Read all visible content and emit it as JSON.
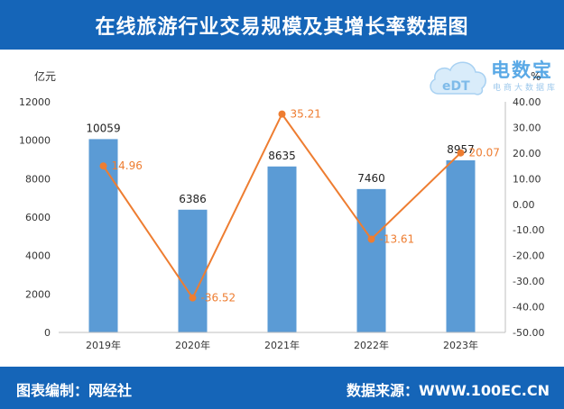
{
  "header": {
    "title": "在线旅游行业交易规模及其增长率数据图"
  },
  "footer": {
    "left": "图表编制：网经社",
    "right": "数据来源：WWW.100EC.CN"
  },
  "logo": {
    "brand": "电数宝",
    "slogan": "电商大数据库",
    "mark_text": "eDT"
  },
  "colors": {
    "bar": "#5b9bd5",
    "line": "#ee7d31",
    "header": "#1565b8"
  },
  "chart_data": {
    "type": "bar",
    "categories": [
      "2019年",
      "2020年",
      "2021年",
      "2022年",
      "2023年"
    ],
    "series": [
      {
        "name": "",
        "type": "bar",
        "axis": "left",
        "values": [
          10059,
          6386,
          8635,
          7460,
          8957
        ],
        "labels": [
          "10059",
          "6386",
          "8635",
          "7460",
          "8957"
        ]
      },
      {
        "name": "",
        "type": "line",
        "axis": "right",
        "values": [
          14.96,
          -36.52,
          35.21,
          -13.61,
          20.07
        ],
        "labels": [
          "14.96",
          "-36.52",
          "35.21",
          "-13.61",
          "20.07"
        ]
      }
    ],
    "y_left": {
      "label": "亿元",
      "min": 0,
      "max": 12000,
      "ticks": [
        "0",
        "2000",
        "4000",
        "6000",
        "8000",
        "10000",
        "12000"
      ]
    },
    "y_right": {
      "label": "%",
      "min": -50,
      "max": 40,
      "ticks": [
        "-50.00",
        "-40.00",
        "-30.00",
        "-20.00",
        "-10.00",
        "0.00",
        "10.00",
        "20.00",
        "30.00",
        "40.00"
      ]
    },
    "grid": false,
    "legend": "none"
  }
}
